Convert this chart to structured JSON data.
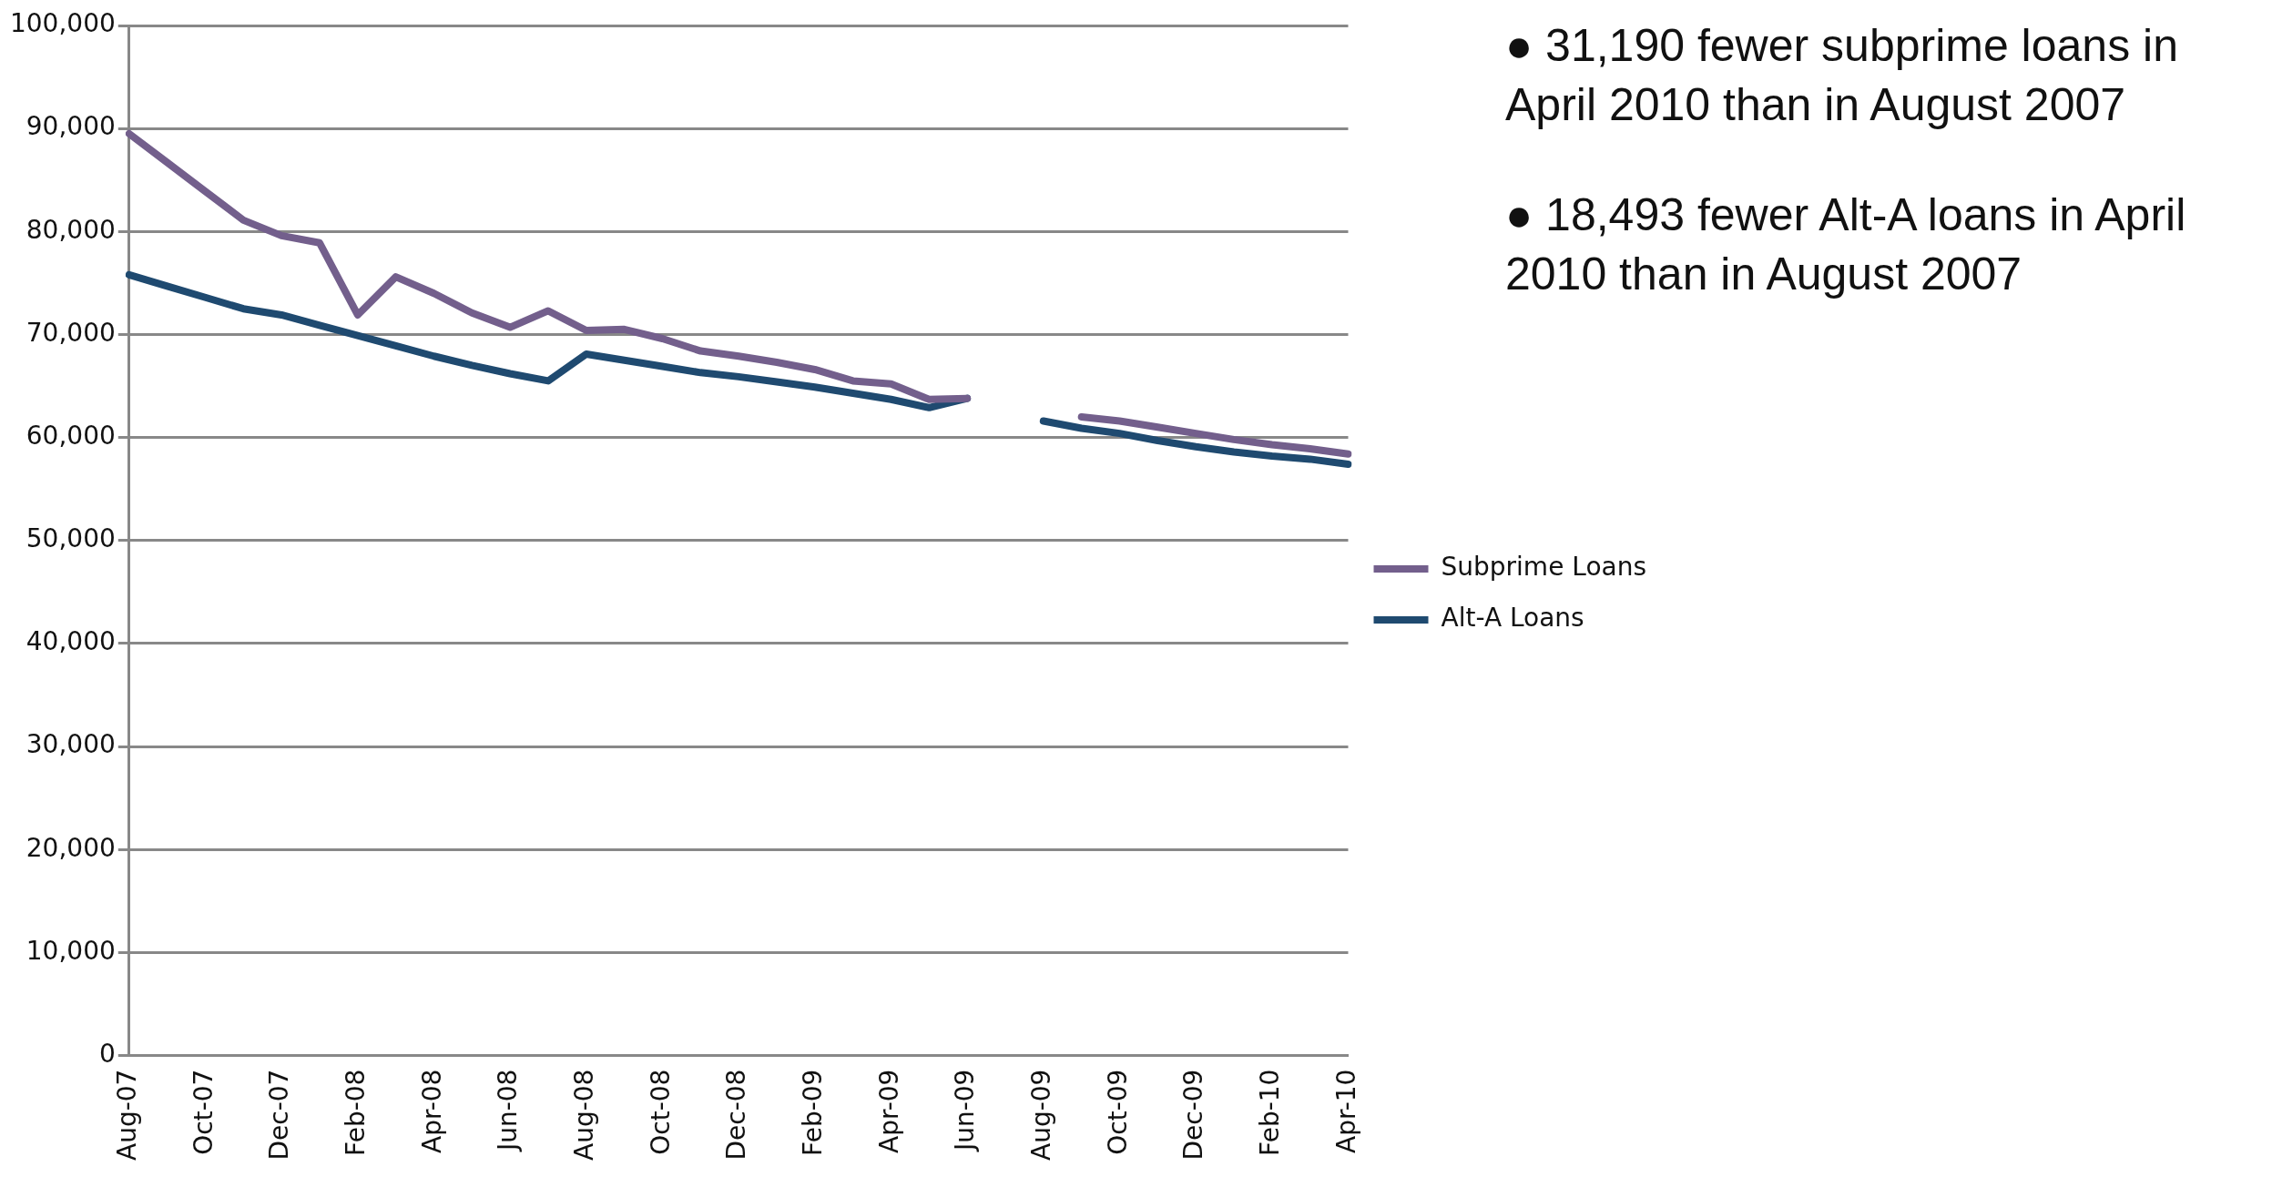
{
  "chart_data": {
    "type": "line",
    "categories": [
      "Aug-07",
      null,
      "Oct-07",
      null,
      "Dec-07",
      null,
      "Feb-08",
      null,
      "Apr-08",
      null,
      "Jun-08",
      null,
      "Aug-08",
      null,
      "Oct-08",
      null,
      "Dec-08",
      null,
      "Feb-09",
      null,
      "Apr-09",
      null,
      "Jun-09",
      null,
      "Aug-09",
      null,
      "Oct-09",
      null,
      "Dec-09",
      null,
      "Feb-10",
      null,
      "Apr-10"
    ],
    "series": [
      {
        "name": "Subprime Loans",
        "color": "#735f8c",
        "values": [
          89500,
          86700,
          83900,
          81100,
          79600,
          78900,
          71900,
          75600,
          74000,
          72100,
          70700,
          72300,
          70400,
          70500,
          69600,
          68400,
          67900,
          67300,
          66600,
          65500,
          65200,
          63700,
          63800,
          null,
          null,
          62000,
          61600,
          61000,
          60400,
          59800,
          59300,
          58900,
          58400
        ]
      },
      {
        "name": "Alt-A Loans",
        "color": "#1f4a70",
        "values": [
          75800,
          74700,
          73600,
          72500,
          71900,
          70900,
          69900,
          68900,
          67900,
          67000,
          66200,
          65500,
          68100,
          67500,
          66900,
          66300,
          65900,
          65400,
          64900,
          64300,
          63700,
          62900,
          63800,
          null,
          61600,
          60900,
          60400,
          59700,
          59100,
          58600,
          58200,
          57900,
          57400
        ]
      }
    ],
    "ylim": [
      0,
      100000
    ],
    "yticks": [
      {
        "value": 0,
        "label": "0"
      },
      {
        "value": 10000,
        "label": "10,000"
      },
      {
        "value": 20000,
        "label": "20,000"
      },
      {
        "value": 30000,
        "label": "30,000"
      },
      {
        "value": 40000,
        "label": "40,000"
      },
      {
        "value": 50000,
        "label": "50,000"
      },
      {
        "value": 60000,
        "label": "60,000"
      },
      {
        "value": 70000,
        "label": "70,000"
      },
      {
        "value": 80000,
        "label": "80,000"
      },
      {
        "value": 90000,
        "label": "90,000"
      },
      {
        "value": 100000,
        "label": "100,000"
      }
    ],
    "grid": "y",
    "legend": "right",
    "marker": "none",
    "line_style": "solid",
    "annotations": [
      "● 31,190 fewer subprime loans in April 2010 than in August 2007",
      "● 18,493 fewer Alt-A loans in April 2010 than in August 2007"
    ]
  }
}
